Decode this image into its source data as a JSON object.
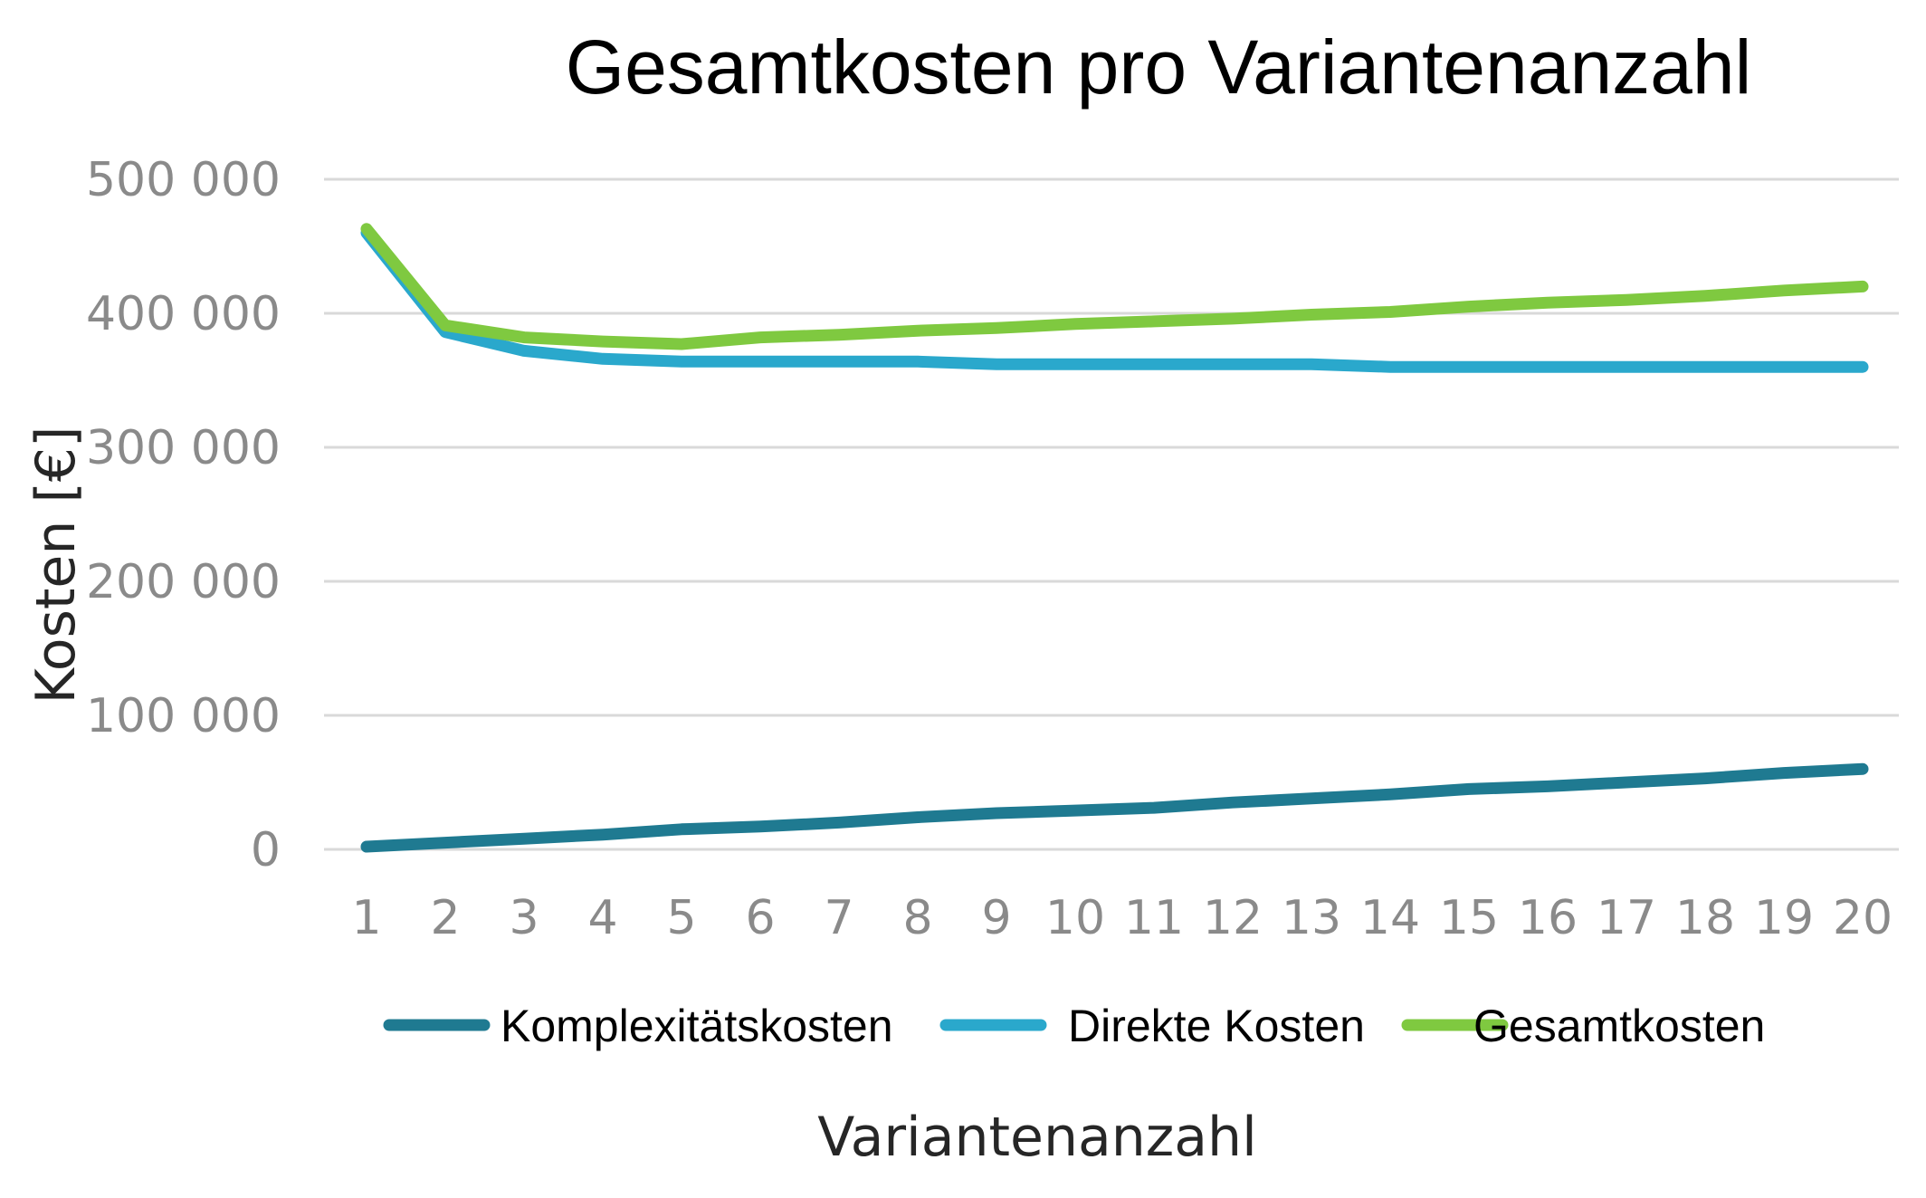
{
  "chart_data": {
    "type": "line",
    "title": "Gesamtkosten pro Variantenanzahl",
    "xlabel": "Variantenanzahl",
    "ylabel": "Kosten [€]",
    "ylim": [
      0,
      500000
    ],
    "y_ticks": [
      0,
      100000,
      200000,
      300000,
      400000,
      500000
    ],
    "y_tick_labels": [
      "0",
      "100 000",
      "200 000",
      "300 000",
      "400 000",
      "500 000"
    ],
    "categories": [
      "1",
      "2",
      "3",
      "4",
      "5",
      "6",
      "7",
      "8",
      "9",
      "10",
      "11",
      "12",
      "13",
      "14",
      "15",
      "16",
      "17",
      "18",
      "19",
      "20"
    ],
    "grid": true,
    "legend_position": "bottom",
    "series": [
      {
        "name": "Komplexitätskosten",
        "color": "#1f7a91",
        "values": [
          2000,
          5000,
          8000,
          11000,
          15000,
          17000,
          20000,
          24000,
          27000,
          29000,
          31000,
          35000,
          38000,
          41000,
          45000,
          47000,
          50000,
          53000,
          57000,
          60000
        ]
      },
      {
        "name": "Direkte Kosten",
        "color": "#2aa8cc",
        "values": [
          460000,
          386000,
          372000,
          366000,
          364000,
          364000,
          364000,
          364000,
          362000,
          362000,
          362000,
          362000,
          362000,
          360000,
          360000,
          360000,
          360000,
          360000,
          360000,
          360000
        ]
      },
      {
        "name": "Gesamtkosten",
        "color": "#7fc940",
        "values": [
          463000,
          391000,
          382000,
          379000,
          377000,
          382000,
          384000,
          387000,
          389000,
          392000,
          394000,
          396000,
          399000,
          401000,
          405000,
          408000,
          410000,
          413000,
          417000,
          420000
        ]
      }
    ]
  }
}
